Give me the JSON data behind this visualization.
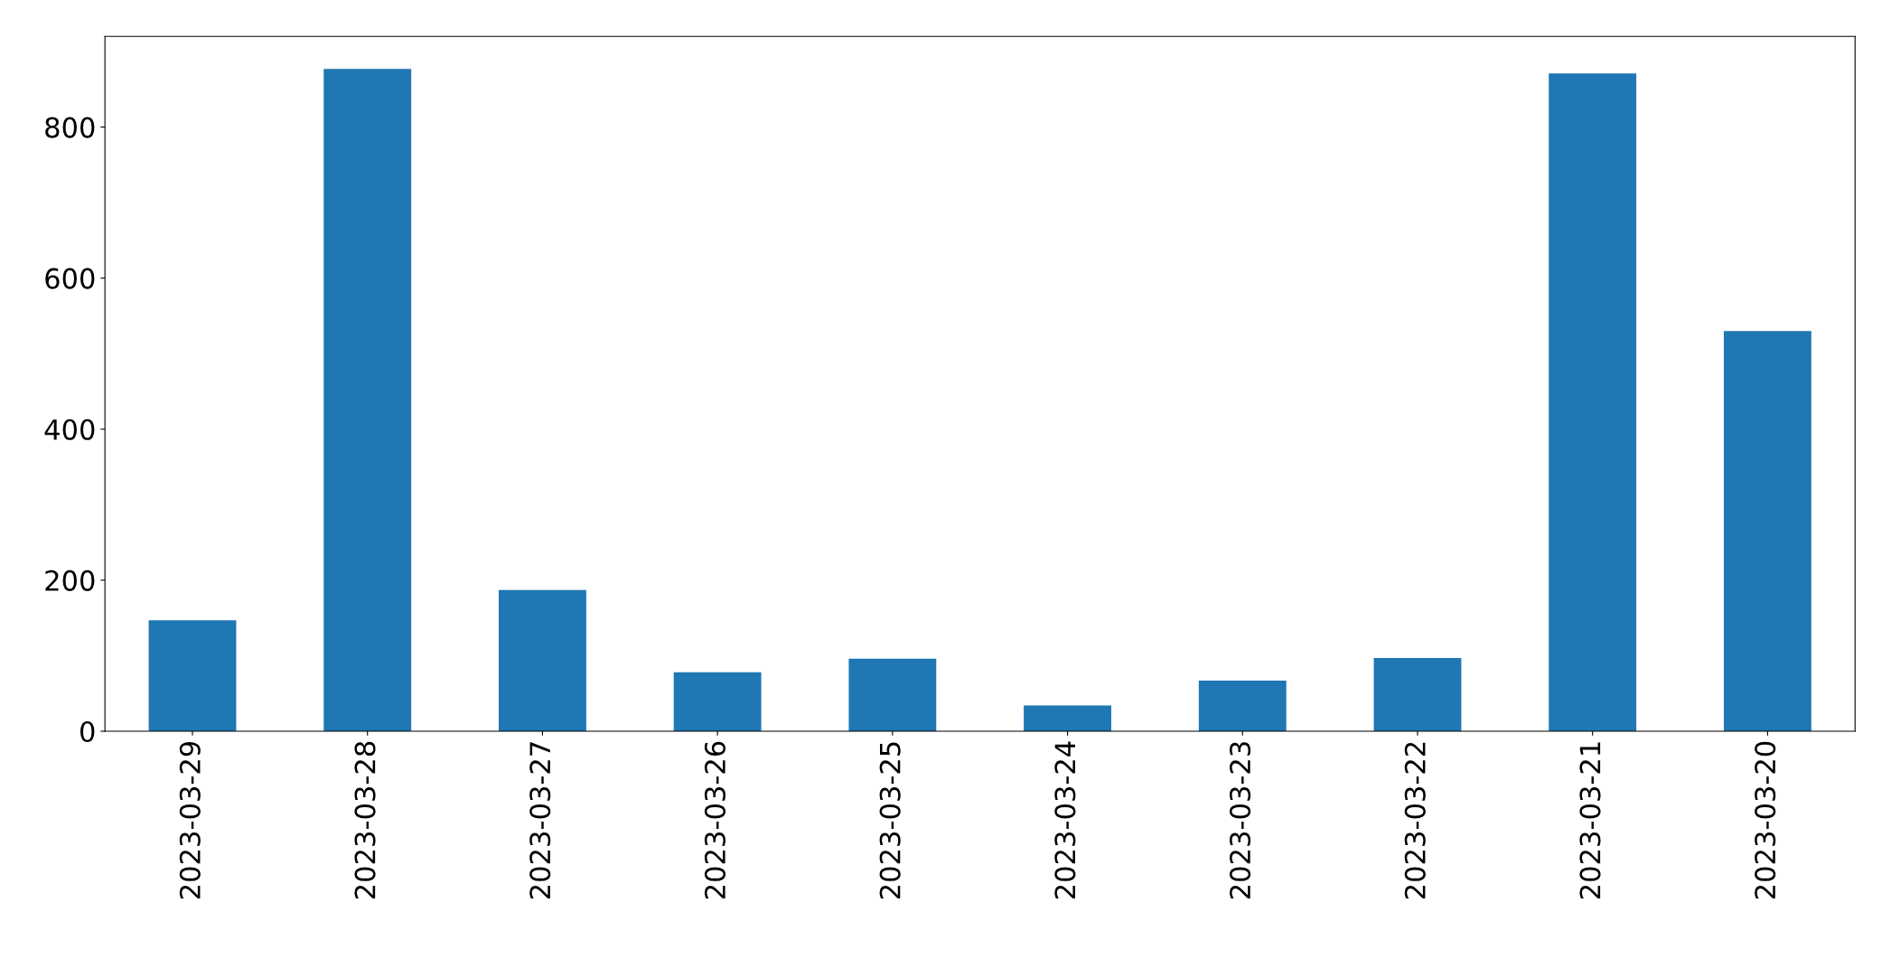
{
  "chart_data": {
    "type": "bar",
    "categories": [
      "2023-03-29",
      "2023-03-28",
      "2023-03-27",
      "2023-03-26",
      "2023-03-25",
      "2023-03-24",
      "2023-03-23",
      "2023-03-22",
      "2023-03-21",
      "2023-03-20"
    ],
    "values": [
      147,
      877,
      187,
      78,
      96,
      34,
      67,
      97,
      871,
      530
    ],
    "color": "#1f77b4",
    "ylim": [
      0,
      920
    ],
    "yticks": [
      0,
      200,
      400,
      600,
      800
    ],
    "grid": false,
    "legend": false
  }
}
